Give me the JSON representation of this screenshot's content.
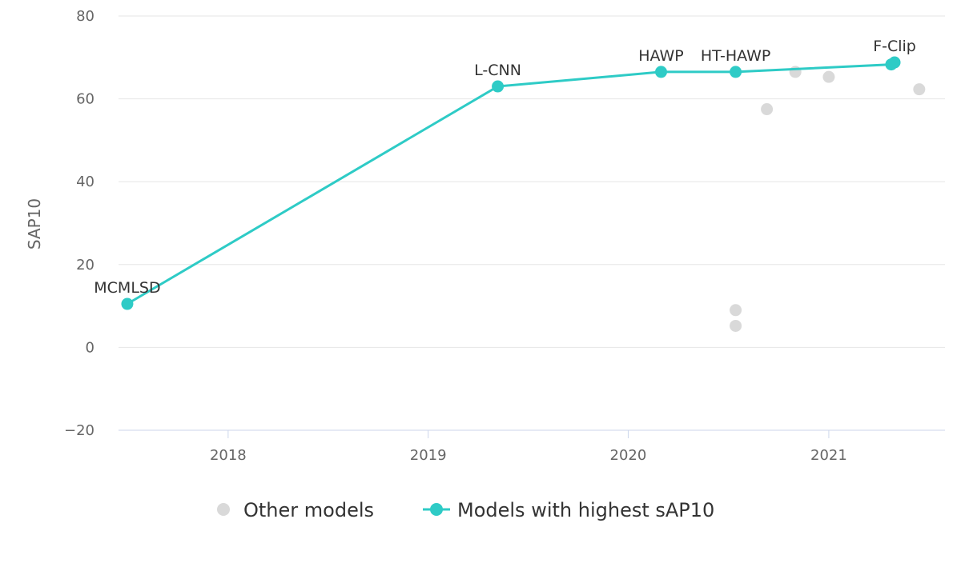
{
  "chart_data": {
    "type": "scatter",
    "ylabel": "SAP10",
    "xlabel": "",
    "ylim": [
      -20,
      80
    ],
    "y_ticks": [
      -20,
      0,
      20,
      40,
      60,
      80
    ],
    "x_ticks": [
      "2018",
      "2019",
      "2020",
      "2021"
    ],
    "xlim": [
      "2017-06-15",
      "2021-08-01"
    ],
    "grid": true,
    "legend_position": "bottom",
    "series": [
      {
        "name": "Other models",
        "color": "#d9d9d9",
        "points": [
          {
            "date": "2020-07-15",
            "value": 9.0
          },
          {
            "date": "2020-07-15",
            "value": 5.2
          },
          {
            "date": "2020-09-10",
            "value": 57.5
          },
          {
            "date": "2020-11-01",
            "value": 66.5
          },
          {
            "date": "2021-01-01",
            "value": 65.3
          },
          {
            "date": "2021-06-15",
            "value": 62.3
          }
        ]
      },
      {
        "name": "Models with highest sAP10",
        "color": "#2ecbc6",
        "points": [
          {
            "date": "2017-07-01",
            "value": 10.5,
            "label": "MCMLSD"
          },
          {
            "date": "2019-05-08",
            "value": 63.0,
            "label": "L-CNN"
          },
          {
            "date": "2020-03-01",
            "value": 66.5,
            "label": "HAWP"
          },
          {
            "date": "2020-07-15",
            "value": 66.5,
            "label": "HT-HAWP"
          },
          {
            "date": "2021-04-25",
            "value": 68.3,
            "label": ""
          },
          {
            "date": "2021-05-01",
            "value": 68.8,
            "label": "F-Clip"
          }
        ]
      }
    ]
  }
}
